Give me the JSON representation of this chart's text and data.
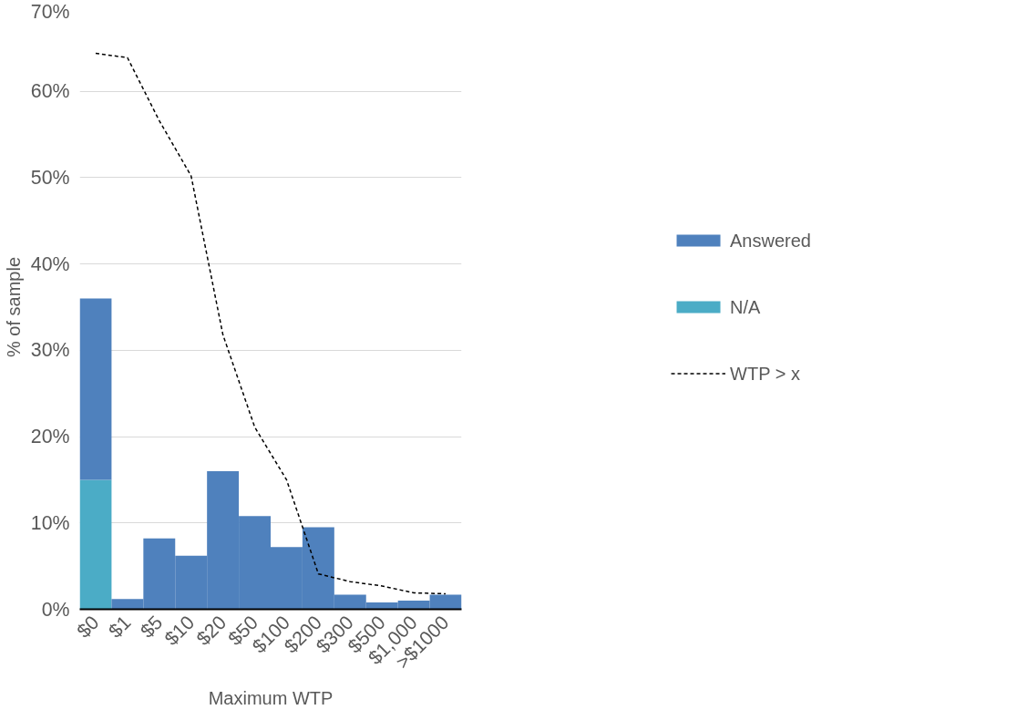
{
  "chart_data": {
    "type": "bar",
    "stacked": true,
    "xlabel": "Maximum WTP",
    "ylabel": "% of sample",
    "categories": [
      "$0",
      "$1",
      "$5",
      "$10",
      "$20",
      "$50",
      "$100",
      "$200",
      "$300",
      "$500",
      "$1,000",
      ">$1000"
    ],
    "series": [
      {
        "name": "N/A",
        "color": "#4bacc6",
        "values": [
          15,
          null,
          null,
          null,
          null,
          null,
          null,
          null,
          null,
          null,
          null,
          null
        ]
      },
      {
        "name": "Answered",
        "color": "#4f81bd",
        "values": [
          21,
          1.2,
          8.2,
          6.2,
          16,
          10.8,
          7.2,
          9.5,
          1.7,
          0.8,
          1.0,
          1.7
        ]
      },
      {
        "name": "WTP > x",
        "type": "line",
        "color": "#000000",
        "line_style": "dashed",
        "values": [
          64.4,
          63.9,
          56.6,
          50.2,
          31.8,
          21.1,
          15,
          4.1,
          3.2,
          2.7,
          1.9,
          1.8
        ]
      }
    ],
    "ylim": [
      0,
      70
    ],
    "yticks": [
      {
        "value": 0,
        "label": "0%"
      },
      {
        "value": 10,
        "label": "10%"
      },
      {
        "value": 20,
        "label": "20%"
      },
      {
        "value": 30,
        "label": "30%"
      },
      {
        "value": 40,
        "label": "40%"
      },
      {
        "value": 50,
        "label": "50%"
      },
      {
        "value": 60,
        "label": "60%"
      },
      {
        "value": 70,
        "label": "70%"
      }
    ],
    "grid": "y",
    "legend": "right"
  }
}
